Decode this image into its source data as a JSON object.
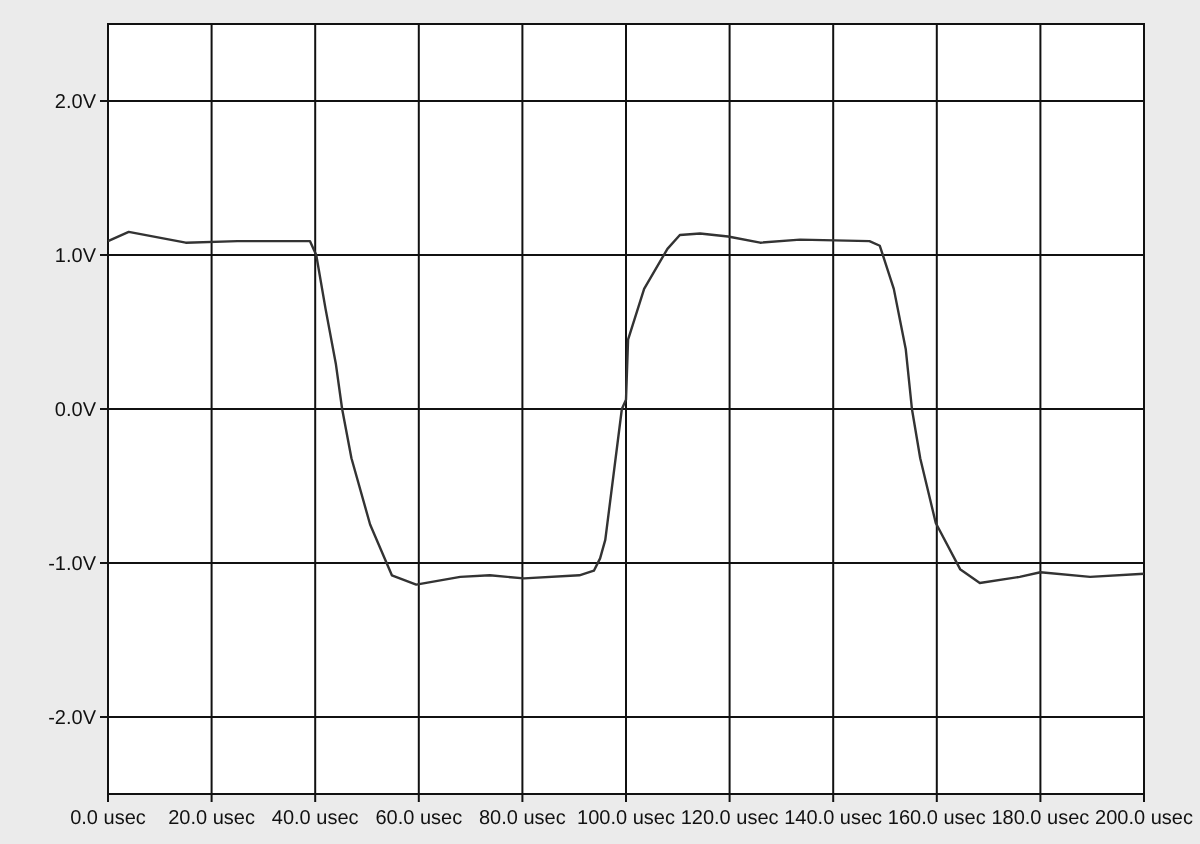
{
  "chart_data": {
    "type": "line",
    "x": [
      0,
      4,
      15,
      25,
      35,
      39,
      40.2,
      42,
      44,
      45.2,
      47,
      50.6,
      54.8,
      59.5,
      68,
      73.7,
      80.3,
      91,
      93.8,
      95,
      96,
      99.2,
      100,
      100.4,
      103.5,
      108,
      110.4,
      114.3,
      119.7,
      125.9,
      133.6,
      147,
      149,
      151.7,
      154,
      155.2,
      156.8,
      159.8,
      164.5,
      168.3,
      176,
      180,
      189.6,
      200
    ],
    "series": [
      {
        "color": "#333333",
        "values": [
          1.09,
          1.15,
          1.08,
          1.09,
          1.09,
          1.09,
          1.0,
          0.65,
          0.29,
          0,
          -0.32,
          -0.75,
          -1.08,
          -1.14,
          -1.09,
          -1.08,
          -1.1,
          -1.08,
          -1.05,
          -0.97,
          -0.85,
          0,
          0.06,
          0.45,
          0.78,
          1.04,
          1.13,
          1.14,
          1.12,
          1.08,
          1.1,
          1.09,
          1.06,
          0.78,
          0.39,
          0,
          -0.32,
          -0.74,
          -1.04,
          -1.13,
          -1.09,
          -1.06,
          -1.09,
          -1.07
        ]
      }
    ],
    "xlim": [
      0,
      200
    ],
    "xticks": [
      {
        "value": 0,
        "label": "0.0 usec"
      },
      {
        "value": 20,
        "label": "20.0 usec"
      },
      {
        "value": 40,
        "label": "40.0 usec"
      },
      {
        "value": 60,
        "label": "60.0 usec"
      },
      {
        "value": 80,
        "label": "80.0 usec"
      },
      {
        "value": 100,
        "label": "100.0 usec"
      },
      {
        "value": 120,
        "label": "120.0 usec"
      },
      {
        "value": 140,
        "label": "140.0 usec"
      },
      {
        "value": 160,
        "label": "160.0 usec"
      },
      {
        "value": 180,
        "label": "180.0 usec"
      },
      {
        "value": 200,
        "label": "200.0 usec"
      }
    ],
    "ylim": [
      -2.5,
      2.5
    ],
    "yticks": [
      {
        "value": -2,
        "label": "-2.0V"
      },
      {
        "value": -1,
        "label": "-1.0V"
      },
      {
        "value": 0,
        "label": "0.0V"
      },
      {
        "value": 1,
        "label": "1.0V"
      },
      {
        "value": 2,
        "label": "2.0V"
      }
    ],
    "grid": true,
    "marker": "none",
    "line_style": "solid"
  }
}
